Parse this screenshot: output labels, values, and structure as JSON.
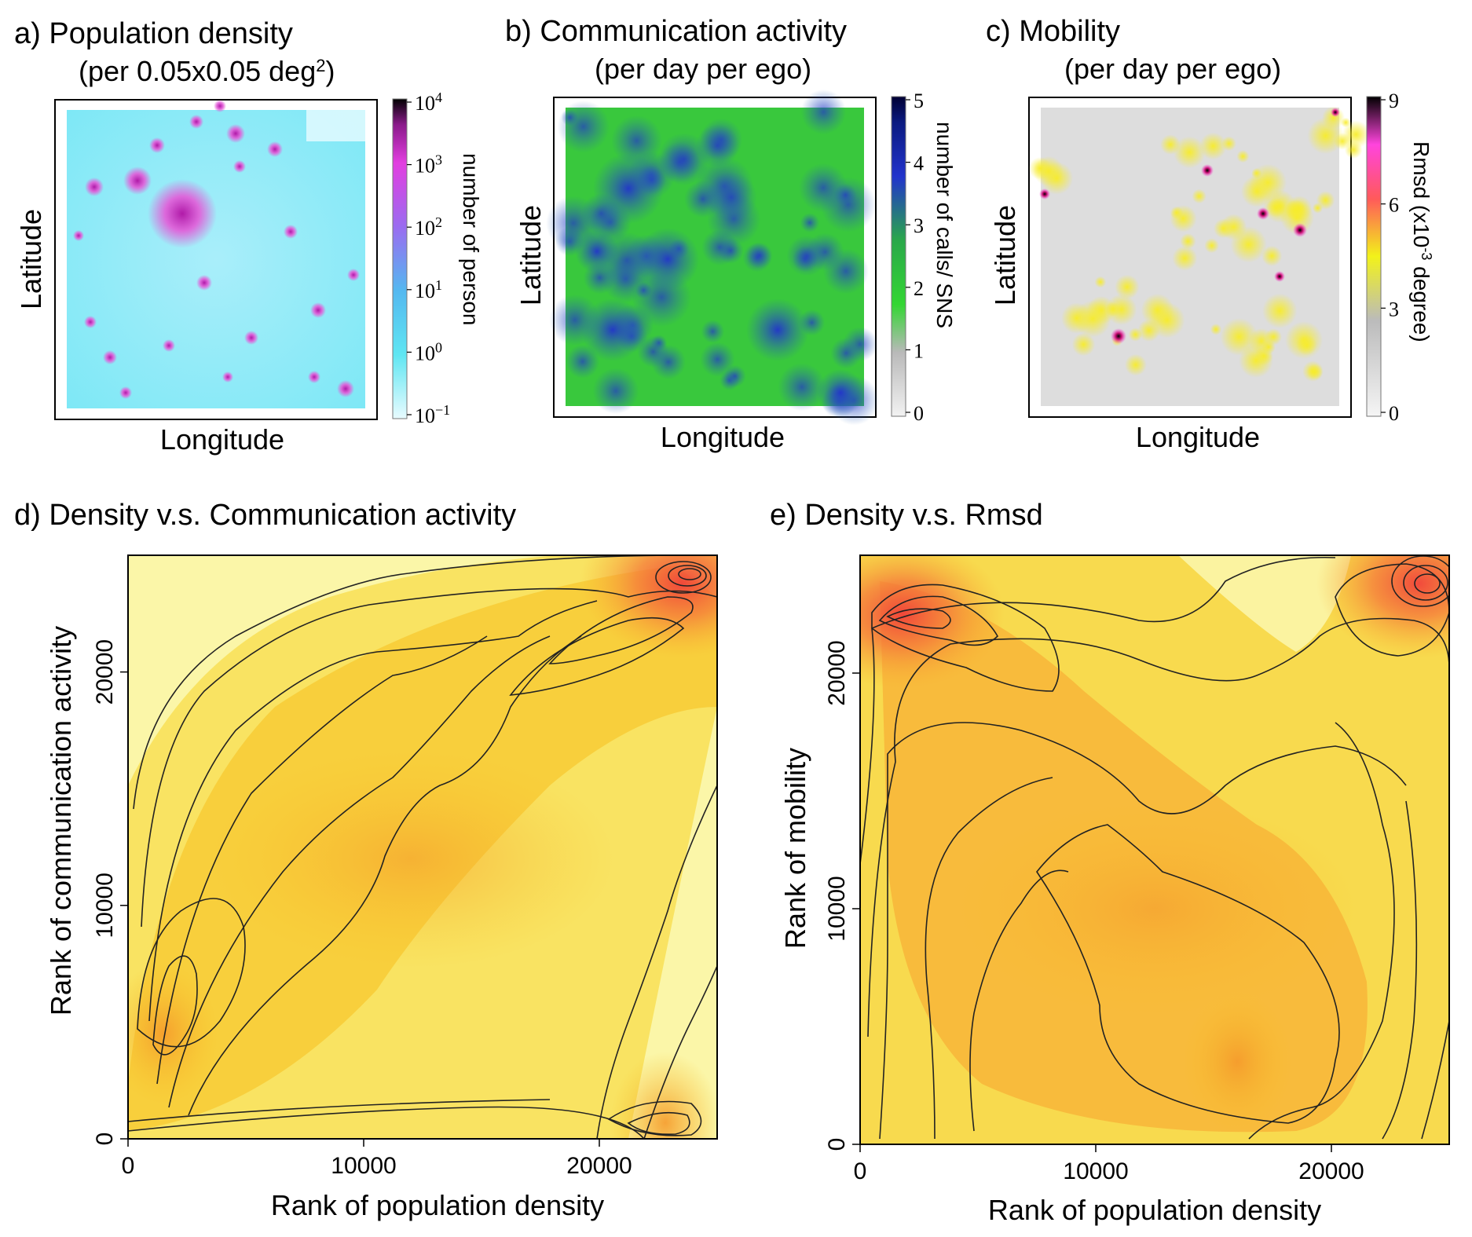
{
  "chart_data": [
    {
      "type": "heatmap",
      "panel": "a",
      "title": "a) Population density",
      "subtitle": "(per 0.05x0.05 deg",
      "subtitle_sup": "2",
      "subtitle_end": ")",
      "xlabel": "Longitude",
      "ylabel": "Latitude",
      "colorbar_label": "number of person",
      "colorbar_scale": "log",
      "colorbar_ticks": [
        {
          "base": "10",
          "exp": "4"
        },
        {
          "base": "10",
          "exp": "3"
        },
        {
          "base": "10",
          "exp": "2"
        },
        {
          "base": "10",
          "exp": "1"
        },
        {
          "base": "10",
          "exp": "0"
        },
        {
          "base": "10",
          "exp": "−1"
        }
      ],
      "colors": [
        "#e8fbff",
        "#5fe6f2",
        "#54b8f0",
        "#9a6cf0",
        "#e23ee0",
        "#8a1a8a",
        "#000000"
      ]
    },
    {
      "type": "heatmap",
      "panel": "b",
      "title": "b) Communication activity",
      "subtitle": "(per day per ego)",
      "xlabel": "Longitude",
      "ylabel": "Latitude",
      "colorbar_label": "number of calls/ SNS",
      "colorbar_ticks": [
        "5",
        "4",
        "3",
        "2",
        "1",
        "0"
      ],
      "colors": [
        "#f2f2f2",
        "#b9b9b9",
        "#33d633",
        "#2aa84a",
        "#2233cc",
        "#0a1a80",
        "#000033"
      ]
    },
    {
      "type": "heatmap",
      "panel": "c",
      "title": "c) Mobility",
      "subtitle": "(per day per ego)",
      "xlabel": "Longitude",
      "ylabel": "Latitude",
      "colorbar_label_pre": "Rmsd (x10",
      "colorbar_label_sup": "-3",
      "colorbar_label_post": " degree)",
      "colorbar_ticks": [
        "9",
        "6",
        "3",
        "0"
      ],
      "colors": [
        "#f5f5f5",
        "#bbbbbb",
        "#f2f21a",
        "#ff5a5a",
        "#ff44dd",
        "#000000"
      ]
    },
    {
      "type": "heatmap",
      "panel": "d",
      "title": "d) Density v.s. Communication activity",
      "xlabel": "Rank of population density",
      "ylabel": "Rank of communication activity",
      "xlim": [
        0,
        25000
      ],
      "ylim": [
        0,
        25000
      ],
      "xticks": [
        "0",
        "10000",
        "20000"
      ],
      "yticks": [
        "0",
        "10000",
        "20000"
      ],
      "density_peaks": [
        {
          "x": 23500,
          "y": 23800,
          "level": "high"
        },
        {
          "x": 1500,
          "y": 4500,
          "level": "medium"
        },
        {
          "x": 22800,
          "y": 700,
          "level": "medium"
        },
        {
          "x": 12000,
          "y": 12000,
          "level": "ridge"
        }
      ]
    },
    {
      "type": "heatmap",
      "panel": "e",
      "title": "e) Density v.s. Rmsd",
      "xlabel": "Rank of population density",
      "ylabel": "Rank of mobility",
      "xlim": [
        0,
        25000
      ],
      "ylim": [
        0,
        25000
      ],
      "xticks": [
        "0",
        "10000",
        "20000"
      ],
      "yticks": [
        "0",
        "10000",
        "20000"
      ],
      "density_peaks": [
        {
          "x": 1800,
          "y": 22500,
          "level": "high"
        },
        {
          "x": 23700,
          "y": 23800,
          "level": "high"
        },
        {
          "x": 16000,
          "y": 3500,
          "level": "medium"
        },
        {
          "x": 12500,
          "y": 10000,
          "level": "ridge"
        }
      ]
    }
  ]
}
